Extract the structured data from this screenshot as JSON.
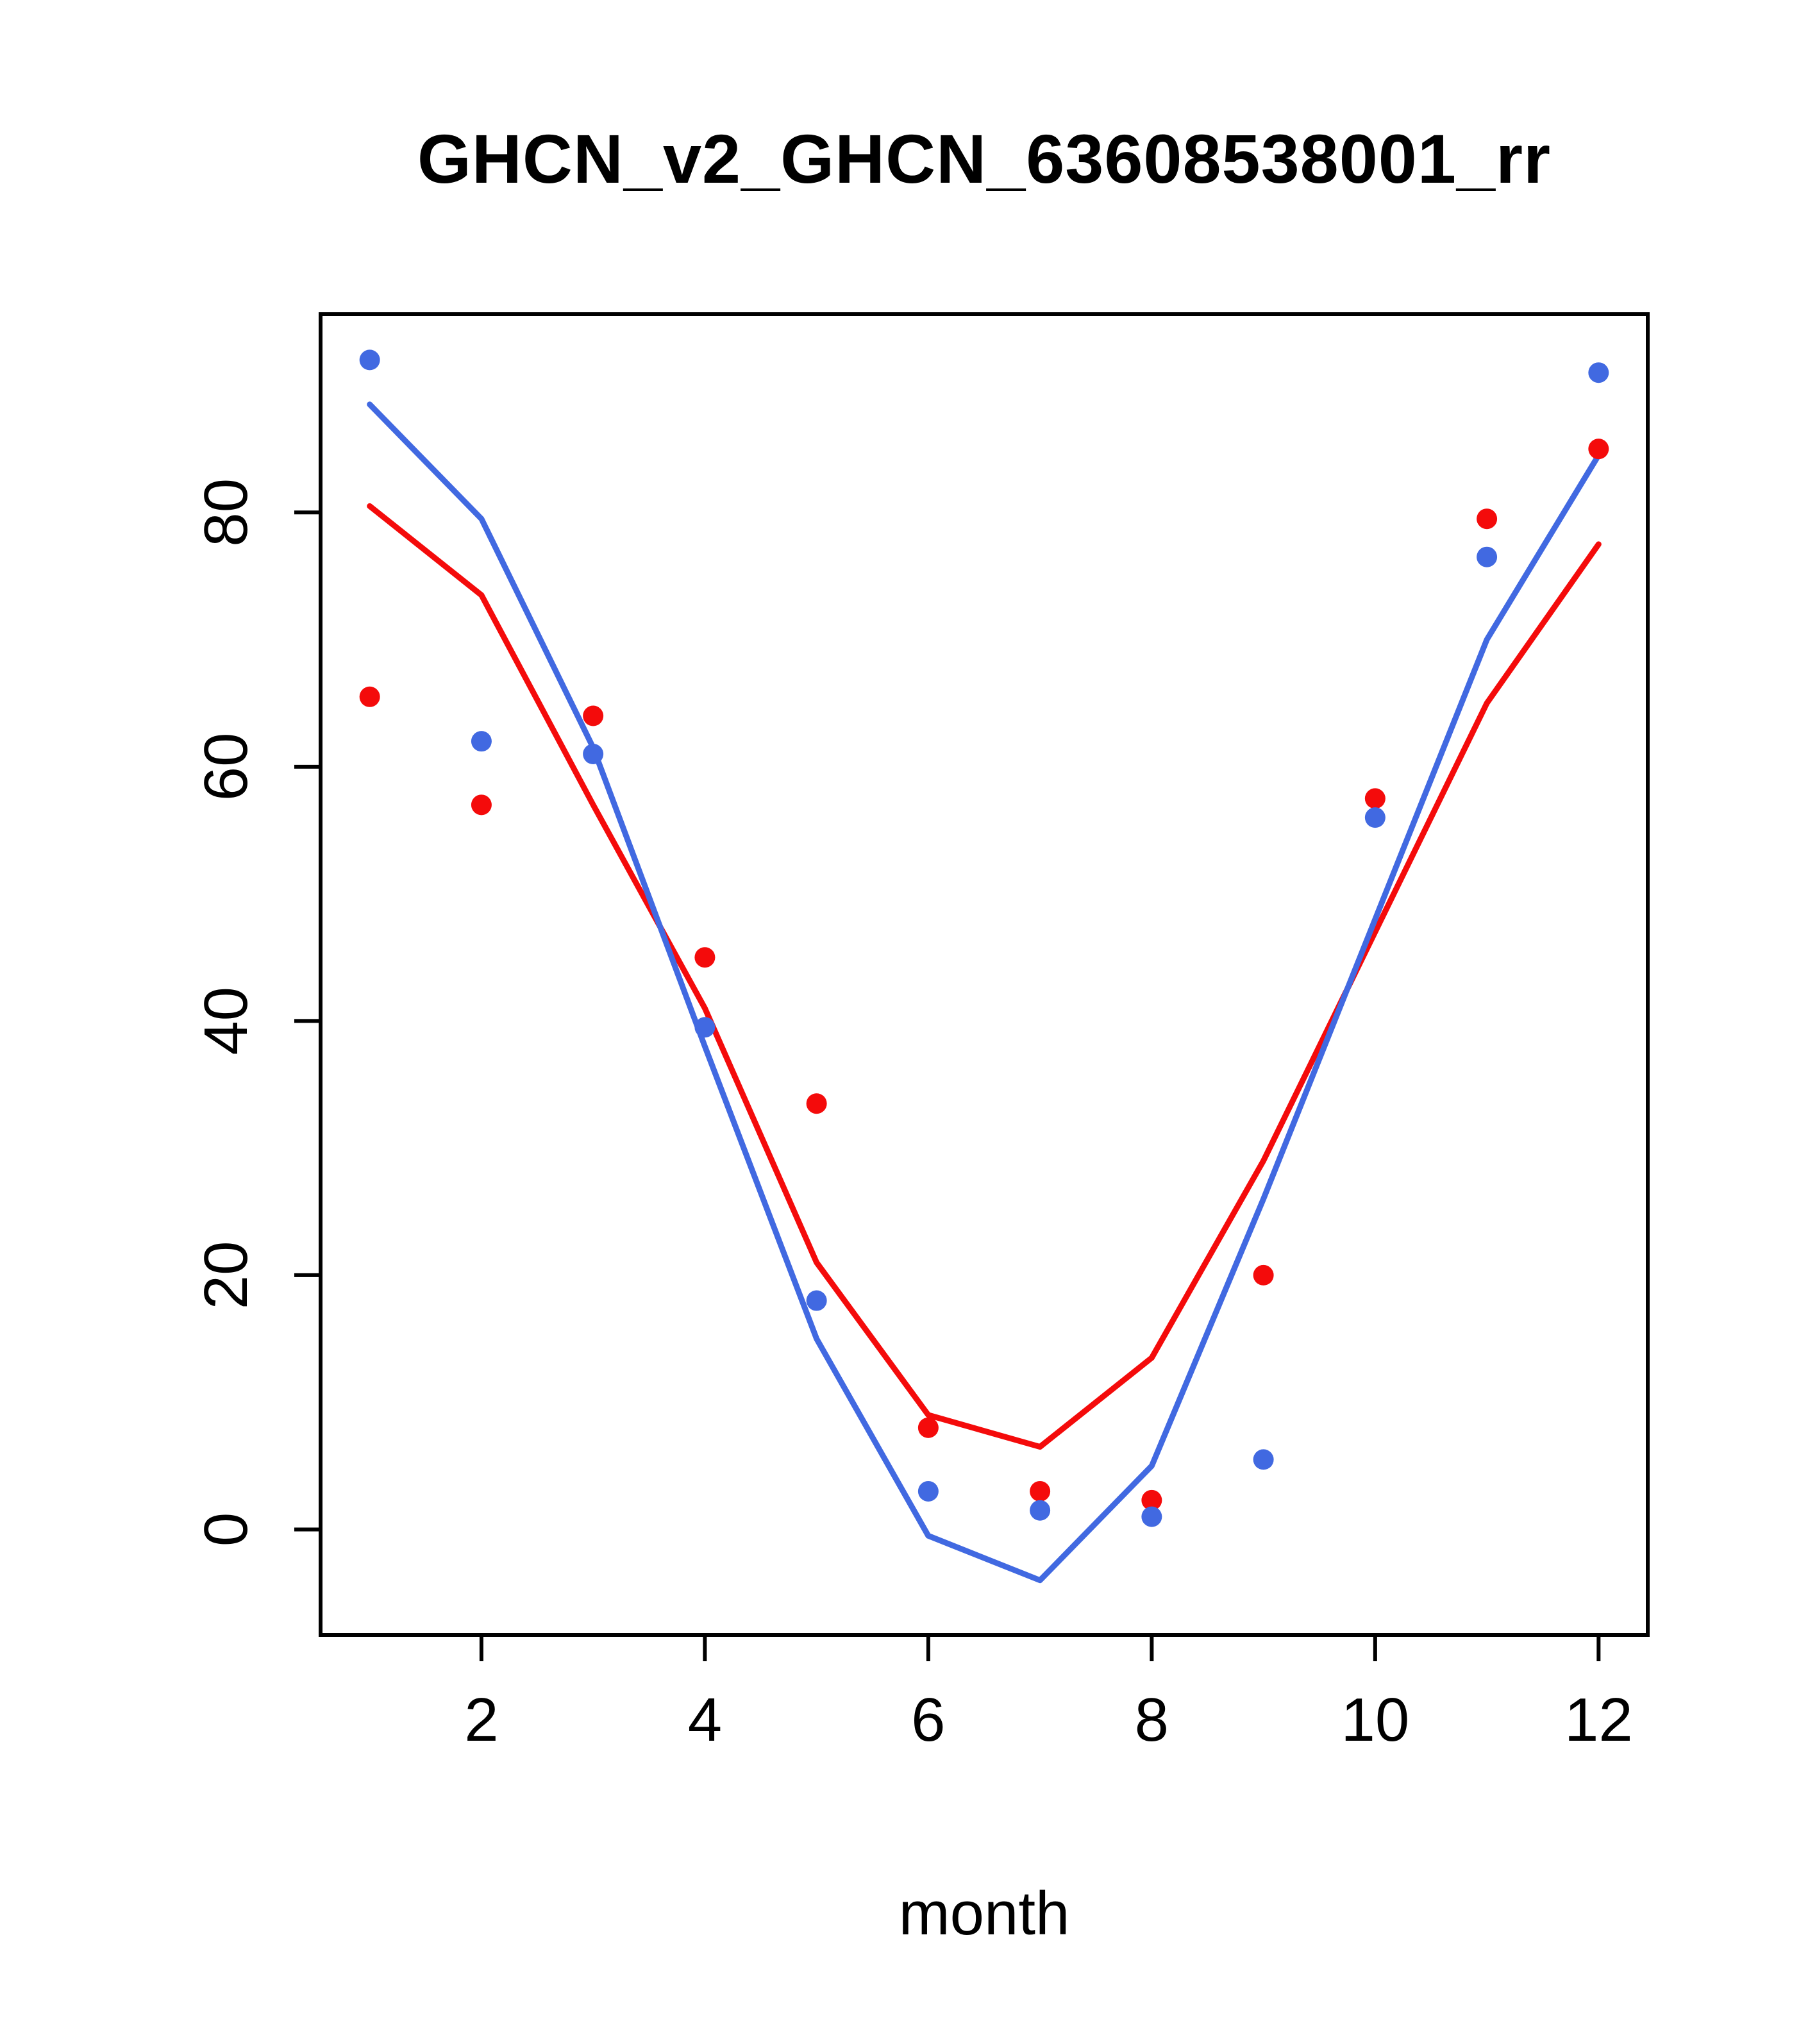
{
  "chart_data": {
    "type": "scatter",
    "title": "GHCN_v2_GHCN_63608538001_rr",
    "xlabel": "month",
    "ylabel": "",
    "x": [
      1,
      2,
      3,
      4,
      5,
      6,
      7,
      8,
      9,
      10,
      11,
      12
    ],
    "xticks": [
      2,
      4,
      6,
      8,
      10,
      12
    ],
    "yticks": [
      0,
      20,
      40,
      60,
      80
    ],
    "xlim": [
      0.56,
      12.44
    ],
    "ylim": [
      -8.3,
      95.6
    ],
    "grid": false,
    "legend": "none",
    "colors": {
      "red": "#f40b0b",
      "blue": "#4169e1",
      "axis": "#000000"
    },
    "series": [
      {
        "name": "red-line",
        "kind": "line",
        "color": "#f40b0b",
        "values": [
          80.5,
          73.5,
          57.0,
          41.0,
          21.0,
          9.0,
          6.5,
          13.5,
          29.0,
          47.0,
          65.0,
          77.5
        ]
      },
      {
        "name": "blue-line",
        "kind": "line",
        "color": "#4169e1",
        "values": [
          88.5,
          79.5,
          61.5,
          38.0,
          15.0,
          -0.5,
          -4.0,
          5.0,
          26.0,
          48.0,
          70.0,
          84.5
        ]
      },
      {
        "name": "red-points",
        "kind": "points",
        "color": "#f40b0b",
        "values": [
          65.5,
          57.0,
          64.0,
          45.0,
          33.5,
          8.0,
          3.0,
          2.3,
          20.0,
          57.5,
          79.5,
          85.0
        ]
      },
      {
        "name": "blue-points",
        "kind": "points",
        "color": "#4169e1",
        "values": [
          92.0,
          62.0,
          61.0,
          39.5,
          18.0,
          3.0,
          1.5,
          1.0,
          5.5,
          56.0,
          76.5,
          91.0
        ]
      }
    ]
  }
}
